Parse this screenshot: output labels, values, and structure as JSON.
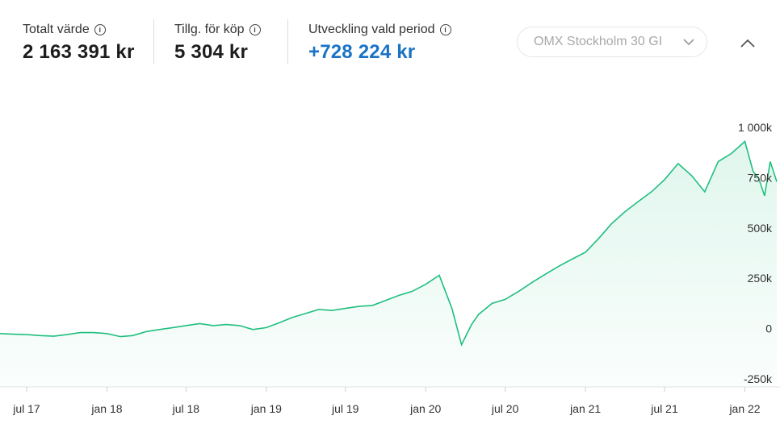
{
  "stats": [
    {
      "label": "Totalt värde",
      "value": "2 163 391 kr"
    },
    {
      "label": "Tillg. för köp",
      "value": "5 304 kr"
    },
    {
      "label": "Utveckling vald period",
      "value": "+728 224 kr"
    }
  ],
  "index_selector": {
    "value": "OMX Stockholm 30 GI"
  },
  "colors": {
    "line": "#1fbf7f",
    "positive": "#1a73c5"
  },
  "chart_data": {
    "type": "area",
    "ylim": [
      -250000,
      1000000
    ],
    "y_ticks": [
      {
        "value": 1000000,
        "label": "1 000k"
      },
      {
        "value": 750000,
        "label": "750k"
      },
      {
        "value": 500000,
        "label": "500k"
      },
      {
        "value": 250000,
        "label": "250k"
      },
      {
        "value": 0,
        "label": "0"
      },
      {
        "value": -250000,
        "label": "-250k"
      }
    ],
    "x_range": [
      "2017-05-01",
      "2022-03-15"
    ],
    "x_ticks": [
      {
        "date": "2017-07-01",
        "label": "jul 17"
      },
      {
        "date": "2018-01-01",
        "label": "jan 18"
      },
      {
        "date": "2018-07-01",
        "label": "jul 18"
      },
      {
        "date": "2019-01-01",
        "label": "jan 19"
      },
      {
        "date": "2019-07-01",
        "label": "jul 19"
      },
      {
        "date": "2020-01-01",
        "label": "jan 20"
      },
      {
        "date": "2020-07-01",
        "label": "jul 20"
      },
      {
        "date": "2021-01-01",
        "label": "jan 21"
      },
      {
        "date": "2021-07-01",
        "label": "jul 21"
      },
      {
        "date": "2022-01-01",
        "label": "jan 22"
      }
    ],
    "series": [
      {
        "points": [
          [
            "2017-05-01",
            -25000
          ],
          [
            "2017-06-01",
            -28000
          ],
          [
            "2017-07-01",
            -30000
          ],
          [
            "2017-08-01",
            -35000
          ],
          [
            "2017-09-01",
            -38000
          ],
          [
            "2017-10-01",
            -30000
          ],
          [
            "2017-11-01",
            -20000
          ],
          [
            "2017-12-01",
            -20000
          ],
          [
            "2018-01-01",
            -25000
          ],
          [
            "2018-02-01",
            -40000
          ],
          [
            "2018-03-01",
            -35000
          ],
          [
            "2018-04-01",
            -15000
          ],
          [
            "2018-05-01",
            -5000
          ],
          [
            "2018-06-01",
            5000
          ],
          [
            "2018-07-01",
            15000
          ],
          [
            "2018-08-01",
            25000
          ],
          [
            "2018-09-01",
            15000
          ],
          [
            "2018-10-01",
            20000
          ],
          [
            "2018-11-01",
            15000
          ],
          [
            "2018-12-01",
            -5000
          ],
          [
            "2019-01-01",
            5000
          ],
          [
            "2019-02-01",
            30000
          ],
          [
            "2019-03-01",
            55000
          ],
          [
            "2019-04-01",
            75000
          ],
          [
            "2019-05-01",
            95000
          ],
          [
            "2019-06-01",
            90000
          ],
          [
            "2019-07-01",
            100000
          ],
          [
            "2019-08-01",
            110000
          ],
          [
            "2019-09-01",
            115000
          ],
          [
            "2019-10-01",
            140000
          ],
          [
            "2019-11-01",
            165000
          ],
          [
            "2019-12-01",
            185000
          ],
          [
            "2020-01-01",
            220000
          ],
          [
            "2020-02-01",
            265000
          ],
          [
            "2020-03-01",
            100000
          ],
          [
            "2020-03-23",
            -80000
          ],
          [
            "2020-04-15",
            20000
          ],
          [
            "2020-05-01",
            70000
          ],
          [
            "2020-06-01",
            125000
          ],
          [
            "2020-07-01",
            145000
          ],
          [
            "2020-08-01",
            185000
          ],
          [
            "2020-09-01",
            230000
          ],
          [
            "2020-10-01",
            270000
          ],
          [
            "2020-11-01",
            310000
          ],
          [
            "2020-12-01",
            345000
          ],
          [
            "2021-01-01",
            380000
          ],
          [
            "2021-02-01",
            450000
          ],
          [
            "2021-03-01",
            520000
          ],
          [
            "2021-04-01",
            580000
          ],
          [
            "2021-05-01",
            630000
          ],
          [
            "2021-06-01",
            680000
          ],
          [
            "2021-07-01",
            740000
          ],
          [
            "2021-08-01",
            820000
          ],
          [
            "2021-09-01",
            760000
          ],
          [
            "2021-10-01",
            680000
          ],
          [
            "2021-11-01",
            830000
          ],
          [
            "2021-12-01",
            870000
          ],
          [
            "2022-01-01",
            930000
          ],
          [
            "2022-01-20",
            780000
          ],
          [
            "2022-02-01",
            750000
          ],
          [
            "2022-02-15",
            660000
          ],
          [
            "2022-02-28",
            830000
          ],
          [
            "2022-03-15",
            730000
          ]
        ]
      }
    ]
  }
}
